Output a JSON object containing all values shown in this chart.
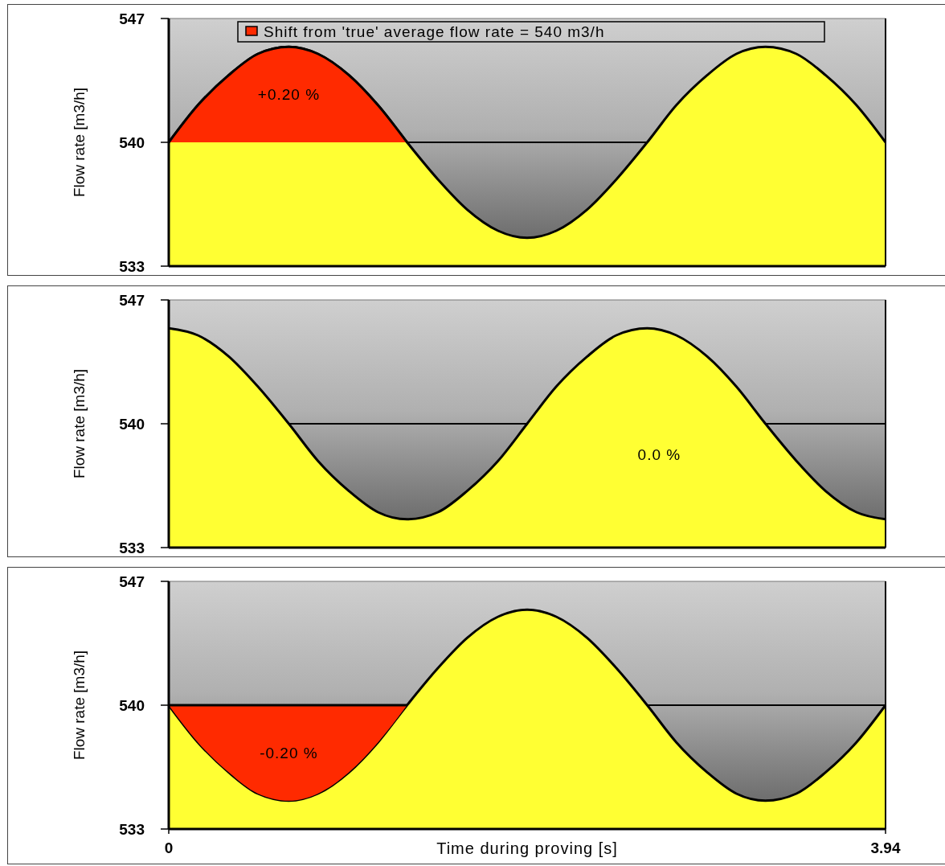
{
  "chart_data": [
    {
      "type": "area",
      "ylabel": "Flow rate [m3/h]",
      "xlim": [
        0,
        3.94
      ],
      "ylim": [
        533,
        547
      ],
      "yticks": [
        533,
        540,
        547
      ],
      "tick_labels": "y",
      "grid": false,
      "legend": "top",
      "line_style": "solid",
      "marker": "none",
      "x": [
        0,
        0.16,
        0.33,
        0.49,
        0.66,
        0.82,
        0.99,
        1.15,
        1.31,
        1.48,
        1.64,
        1.81,
        1.97,
        2.13,
        2.3,
        2.46,
        2.63,
        2.79,
        2.96,
        3.12,
        3.28,
        3.45,
        3.61,
        3.78,
        3.94
      ],
      "series": [
        {
          "color": "#ffff33",
          "values": [
            540,
            542.1,
            543.8,
            545.0,
            545.4,
            545.0,
            543.8,
            542.1,
            540,
            537.9,
            536.2,
            535.0,
            534.6,
            535.0,
            536.2,
            537.9,
            540,
            542.1,
            543.8,
            545.0,
            545.4,
            545.0,
            543.8,
            542.1,
            540
          ]
        },
        {
          "name": "Shift from 'true' average flow rate = 540 m3/h",
          "color": "#ff2a00",
          "values": [
            540,
            542.1,
            543.8,
            545.0,
            545.4,
            545.0,
            543.8,
            542.1,
            540,
            null,
            null,
            null,
            null,
            null,
            null,
            null,
            null,
            null,
            null,
            null,
            null,
            null,
            null,
            null,
            null
          ]
        }
      ],
      "ref_lines": [
        {
          "axis": "y",
          "value": 540,
          "color": "#000000"
        }
      ],
      "annotations": [
        "+0.20 %"
      ]
    },
    {
      "type": "area",
      "ylabel": "Flow rate [m3/h]",
      "xlim": [
        0,
        3.94
      ],
      "ylim": [
        533,
        547
      ],
      "yticks": [
        533,
        540,
        547
      ],
      "tick_labels": "y",
      "grid": false,
      "line_style": "solid",
      "marker": "none",
      "x": [
        0,
        0.16,
        0.33,
        0.49,
        0.66,
        0.82,
        0.99,
        1.15,
        1.31,
        1.48,
        1.64,
        1.81,
        1.97,
        2.13,
        2.3,
        2.46,
        2.63,
        2.79,
        2.96,
        3.12,
        3.28,
        3.45,
        3.61,
        3.78,
        3.94
      ],
      "series": [
        {
          "color": "#ffff33",
          "values": [
            545.4,
            545.0,
            543.8,
            542.1,
            540,
            537.9,
            536.2,
            535.0,
            534.6,
            535.0,
            536.2,
            537.9,
            540,
            542.1,
            543.8,
            545.0,
            545.4,
            545.0,
            543.8,
            542.1,
            540,
            537.9,
            536.2,
            535.0,
            534.6
          ]
        }
      ],
      "ref_lines": [
        {
          "axis": "y",
          "value": 540,
          "color": "#000000"
        }
      ],
      "annotations": [
        "0.0 %"
      ]
    },
    {
      "type": "area",
      "xlabel": "Time during proving [s]",
      "ylabel": "Flow rate [m3/h]",
      "xlim": [
        0,
        3.94
      ],
      "xticks": [
        0,
        3.94
      ],
      "ylim": [
        533,
        547
      ],
      "yticks": [
        533,
        540,
        547
      ],
      "grid": false,
      "line_style": "solid",
      "marker": "none",
      "x": [
        0,
        0.16,
        0.33,
        0.49,
        0.66,
        0.82,
        0.99,
        1.15,
        1.31,
        1.48,
        1.64,
        1.81,
        1.97,
        2.13,
        2.3,
        2.46,
        2.63,
        2.79,
        2.96,
        3.12,
        3.28,
        3.45,
        3.61,
        3.78,
        3.94
      ],
      "series": [
        {
          "color": "#ffff33",
          "values": [
            540,
            537.9,
            536.2,
            535.0,
            534.6,
            535.0,
            536.2,
            537.9,
            540,
            542.1,
            543.8,
            545.0,
            545.4,
            545.0,
            543.8,
            542.1,
            540,
            537.9,
            536.2,
            535.0,
            534.6,
            535.0,
            536.2,
            537.9,
            540
          ]
        },
        {
          "color": "#ff2a00",
          "values": [
            540,
            540,
            540,
            540,
            540,
            540,
            540,
            540,
            540,
            null,
            null,
            null,
            null,
            null,
            null,
            null,
            null,
            null,
            null,
            null,
            null,
            null,
            null,
            null,
            null
          ]
        }
      ],
      "ref_lines": [
        {
          "axis": "y",
          "value": 540,
          "color": "#000000"
        }
      ],
      "annotations": [
        "-0.20 %"
      ]
    }
  ]
}
